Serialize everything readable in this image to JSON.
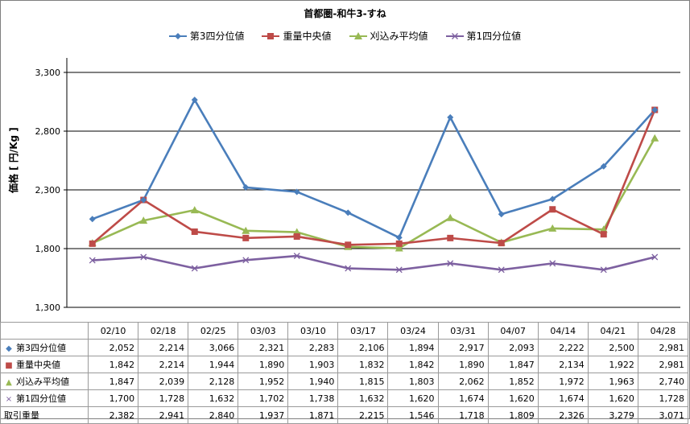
{
  "chart_data": {
    "type": "line",
    "title": "首都圏-和牛3-すね",
    "ylabel": "価格 [ 円/Kg ]",
    "xlabel": "",
    "ylim": [
      1300,
      3300
    ],
    "yticks": [
      "1,300",
      "1,800",
      "2,300",
      "2,800",
      "3,300"
    ],
    "ytick_values": [
      1300,
      1800,
      2300,
      2800,
      3300
    ],
    "categories": [
      "02/10",
      "02/18",
      "02/25",
      "03/03",
      "03/10",
      "03/17",
      "03/24",
      "03/31",
      "04/07",
      "04/14",
      "04/21",
      "04/28"
    ],
    "grid": true,
    "legend_position": "top",
    "series": [
      {
        "name": "第3四分位値",
        "color": "#4a7ebb",
        "marker": "diamond",
        "values": [
          2052,
          2214,
          3066,
          2321,
          2283,
          2106,
          1894,
          2917,
          2093,
          2222,
          2500,
          2981
        ],
        "labels": [
          "2,052",
          "2,214",
          "3,066",
          "2,321",
          "2,283",
          "2,106",
          "1,894",
          "2,917",
          "2,093",
          "2,222",
          "2,500",
          "2,981"
        ]
      },
      {
        "name": "重量中央値",
        "color": "#be4b48",
        "marker": "square",
        "values": [
          1842,
          2214,
          1944,
          1890,
          1903,
          1832,
          1842,
          1890,
          1847,
          2134,
          1922,
          2981
        ],
        "labels": [
          "1,842",
          "2,214",
          "1,944",
          "1,890",
          "1,903",
          "1,832",
          "1,842",
          "1,890",
          "1,847",
          "2,134",
          "1,922",
          "2,981"
        ]
      },
      {
        "name": "刈込み平均値",
        "color": "#98b954",
        "marker": "triangle",
        "values": [
          1847,
          2039,
          2128,
          1952,
          1940,
          1815,
          1803,
          2062,
          1852,
          1972,
          1963,
          2740
        ],
        "labels": [
          "1,847",
          "2,039",
          "2,128",
          "1,952",
          "1,940",
          "1,815",
          "1,803",
          "2,062",
          "1,852",
          "1,972",
          "1,963",
          "2,740"
        ]
      },
      {
        "name": "第1四分位値",
        "color": "#7d60a0",
        "marker": "x",
        "values": [
          1700,
          1728,
          1632,
          1702,
          1738,
          1632,
          1620,
          1674,
          1620,
          1674,
          1620,
          1728
        ],
        "labels": [
          "1,700",
          "1,728",
          "1,632",
          "1,702",
          "1,738",
          "1,632",
          "1,620",
          "1,674",
          "1,620",
          "1,674",
          "1,620",
          "1,728"
        ]
      }
    ],
    "table_extra_row": {
      "name": "取引重量",
      "labels": [
        "2,382",
        "2,941",
        "2,840",
        "1,937",
        "1,871",
        "2,215",
        "1,546",
        "1,718",
        "1,809",
        "2,326",
        "3,279",
        "3,071"
      ]
    }
  }
}
